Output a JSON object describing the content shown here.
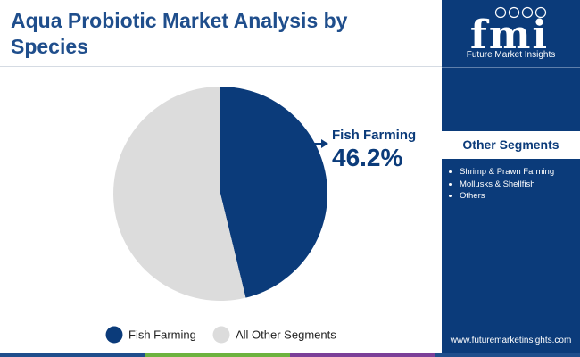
{
  "header": {
    "title": "Aqua Probiotic Market Analysis by Species"
  },
  "brand": {
    "logo_text": "fmi",
    "tagline": "Future Market Insights",
    "website": "www.futuremarketinsights.com"
  },
  "sidebar": {
    "segments_title": "Other Segments",
    "segments": [
      "Shrimp & Prawn Farming",
      "Mollusks & Shellfish",
      "Others"
    ]
  },
  "chart_data": {
    "type": "pie",
    "labels": [
      "Fish Farming",
      "All Other Segments"
    ],
    "values": [
      46.2,
      53.8
    ],
    "colors": [
      "#0b3b7a",
      "#dcdcdc"
    ],
    "start_angle_deg": 0,
    "direction": "clockwise",
    "legend": "bottom",
    "annotations": [
      {
        "label": "Fish Farming",
        "value": "46.2%"
      }
    ]
  },
  "colors": {
    "primary": "#0b3b7a",
    "title": "#1f4e8c",
    "bottom_bar": [
      "#1f4e8c",
      "#6db33f",
      "#7b3f98",
      "#1f4e8c"
    ]
  }
}
